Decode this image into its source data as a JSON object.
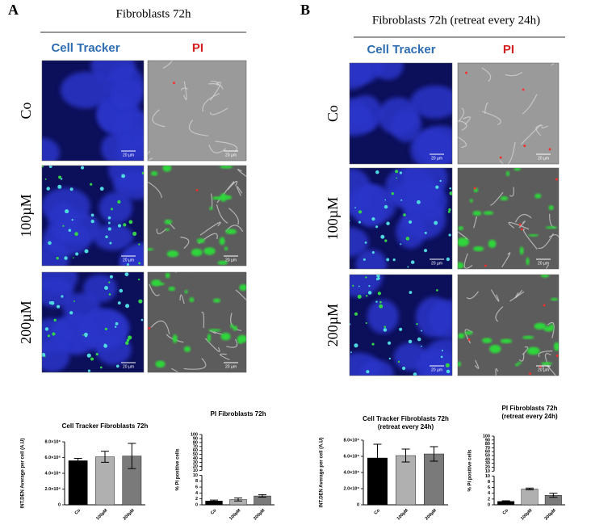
{
  "panels": [
    {
      "label": "A",
      "title": "Fibroblasts 72h",
      "columns": [
        "Cell Tracker",
        "PI"
      ],
      "rows": [
        "Co",
        "100µM",
        "200µM"
      ]
    },
    {
      "label": "B",
      "title": "Fibroblasts 72h (retreat every 24h)",
      "columns": [
        "Cell Tracker",
        "PI"
      ],
      "rows": [
        "Co",
        "100µM",
        "200µM"
      ]
    }
  ],
  "scale_bar": "20 µm",
  "chart_data": [
    {
      "type": "bar",
      "title": "Cell Tracker Fibroblasts 72h",
      "ylabel": "INT.DEN Average per cell (A.U)",
      "categories": [
        "Co",
        "100µM",
        "200µM"
      ],
      "values": [
        5600000,
        6100000,
        6200000
      ],
      "errors": [
        300000,
        700000,
        1600000
      ],
      "colors": [
        "#000000",
        "#b0b0b0",
        "#7a7a7a"
      ],
      "ylim": [
        0,
        8000000
      ],
      "yticks": [
        0,
        {
          "value": 2000000,
          "label": "2.0×10⁶"
        },
        {
          "value": 4000000,
          "label": "4.0×10⁶"
        },
        {
          "value": 6000000,
          "label": "6.0×10⁶"
        },
        {
          "value": 8000000,
          "label": "8.0×10⁶"
        }
      ]
    },
    {
      "type": "bar",
      "title": "PI Fibroblasts 72h",
      "ylabel": "% PI positive cells",
      "categories": [
        "Co",
        "100µM",
        "200µM"
      ],
      "values": [
        1.3,
        1.8,
        3.0
      ],
      "errors": [
        0.3,
        0.5,
        0.4
      ],
      "colors": [
        "#000000",
        "#b0b0b0",
        "#7a7a7a"
      ],
      "ylim": [
        0,
        10
      ],
      "yticks": [
        0,
        2,
        4,
        6,
        8,
        10
      ],
      "ylim_upper": [
        10,
        100
      ],
      "yticks_upper": [
        10,
        20,
        30,
        40,
        50,
        60,
        70,
        80,
        90,
        100
      ]
    },
    {
      "type": "bar",
      "title": "Cell Tracker Fibroblasts 72h",
      "subtitle": "(retreat every 24h)",
      "ylabel": "INT.DEN Average per cell (A.U)",
      "categories": [
        "Co",
        "100µM",
        "200µM"
      ],
      "values": [
        5800000,
        6100000,
        6300000
      ],
      "errors": [
        1700000,
        800000,
        900000
      ],
      "colors": [
        "#000000",
        "#b0b0b0",
        "#7a7a7a"
      ],
      "ylim": [
        0,
        8000000
      ],
      "yticks": [
        0,
        {
          "value": 2000000,
          "label": "2.0×10⁶"
        },
        {
          "value": 4000000,
          "label": "4.0×10⁶"
        },
        {
          "value": 6000000,
          "label": "6.0×10⁶"
        },
        {
          "value": 8000000,
          "label": "8.0×10⁶"
        }
      ]
    },
    {
      "type": "bar",
      "title": "PI Fibroblasts 72h",
      "subtitle": "(retreat every 24h)",
      "ylabel": "% PI positive cells",
      "categories": [
        "Co",
        "100µM",
        "200µM"
      ],
      "values": [
        1.2,
        5.5,
        3.3
      ],
      "errors": [
        0.2,
        0.3,
        0.7
      ],
      "colors": [
        "#000000",
        "#b0b0b0",
        "#7a7a7a"
      ],
      "ylim": [
        0,
        10
      ],
      "yticks": [
        0,
        2,
        4,
        6,
        8,
        10
      ],
      "ylim_upper": [
        10,
        100
      ],
      "yticks_upper": [
        10,
        20,
        30,
        40,
        50,
        60,
        70,
        80,
        90,
        100
      ]
    }
  ]
}
